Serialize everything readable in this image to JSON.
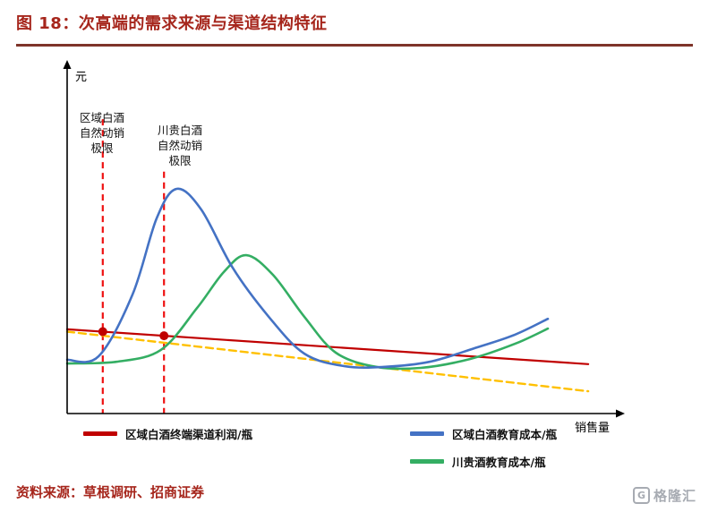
{
  "header": {
    "title": "图 18：次高端的需求来源与渠道结构特征"
  },
  "footer": {
    "source": "资料来源：草根调研、招商证券",
    "logo_letter": "G",
    "logo_text": "格隆汇"
  },
  "colors": {
    "title": "#A6261C",
    "rule": "#7E342A",
    "source": "#A6261C"
  },
  "chart_data": {
    "type": "line",
    "title": "次高端的需求来源与渠道结构特征",
    "xlabel": "销售量",
    "ylabel": "元",
    "x_range": [
      0,
      100
    ],
    "y_range": [
      0,
      100
    ],
    "grid": false,
    "legend_position": "bottom",
    "axis_color": "#000000",
    "series": [
      {
        "id": "yellow-dashed-reference",
        "name": "",
        "color": "#FFC000",
        "width": 2.4,
        "dash": "8 5",
        "smooth": false,
        "points": [
          [
            0,
            24.2
          ],
          [
            99.5,
            6.6
          ]
        ]
      },
      {
        "id": "regional-terminal-profit",
        "name": "区域白酒终端渠道利润/瓶",
        "color": "#C00000",
        "width": 2.2,
        "dash": null,
        "smooth": false,
        "points": [
          [
            0,
            24.9
          ],
          [
            99.5,
            14.6
          ]
        ]
      },
      {
        "id": "chuangui-education-cost",
        "name": "川贵酒教育成本/瓶",
        "color": "#34AE63",
        "width": 2.6,
        "dash": null,
        "smooth": true,
        "points": [
          [
            0,
            14.8
          ],
          [
            9.4,
            15.3
          ],
          [
            17.9,
            18.8
          ],
          [
            24.8,
            31.2
          ],
          [
            29.9,
            41.8
          ],
          [
            34.2,
            46.8
          ],
          [
            39.3,
            41.0
          ],
          [
            45.3,
            28.6
          ],
          [
            51.3,
            18.0
          ],
          [
            59.0,
            13.8
          ],
          [
            67.5,
            13.5
          ],
          [
            76.9,
            16.1
          ],
          [
            85.5,
            20.6
          ],
          [
            91.8,
            25.1
          ]
        ]
      },
      {
        "id": "regional-education-cost",
        "name": "区域白酒教育成本/瓶",
        "color": "#4472C4",
        "width": 2.6,
        "dash": null,
        "smooth": true,
        "points": [
          [
            0,
            15.9
          ],
          [
            6.0,
            16.9
          ],
          [
            12.5,
            35.2
          ],
          [
            17.1,
            57.7
          ],
          [
            20.9,
            66.4
          ],
          [
            25.6,
            60.3
          ],
          [
            31.6,
            43.1
          ],
          [
            38.5,
            28.6
          ],
          [
            45.3,
            17.7
          ],
          [
            53.0,
            14.0
          ],
          [
            60.7,
            13.8
          ],
          [
            69.2,
            15.3
          ],
          [
            77.8,
            19.3
          ],
          [
            85.5,
            23.3
          ],
          [
            91.8,
            28.0
          ]
        ]
      }
    ],
    "vlines": [
      {
        "x": 6.8,
        "y_top": 87,
        "color": "#EE1111",
        "width": 2.2,
        "dash": "7 5",
        "label_lines": [
          "区域白酒",
          "自然动销",
          "极限"
        ]
      },
      {
        "x": 18.5,
        "y_top": 71.5,
        "color": "#EE1111",
        "width": 2.2,
        "dash": "7 5",
        "label_lines": [
          "川贵白酒",
          "自然动销",
          "极限"
        ]
      }
    ],
    "markers": [
      {
        "x": 6.8,
        "y": 24.2,
        "r": 5,
        "color": "#C00000"
      },
      {
        "x": 18.5,
        "y": 23.0,
        "r": 5,
        "color": "#C00000"
      }
    ]
  }
}
